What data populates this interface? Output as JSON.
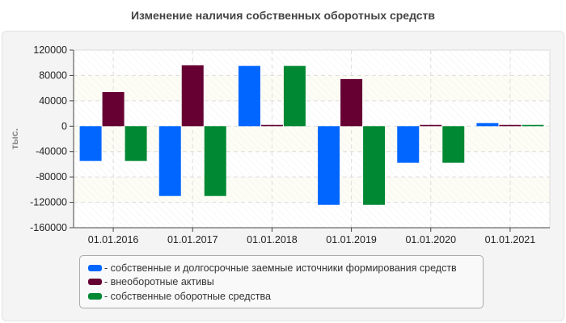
{
  "chart_data": {
    "type": "bar",
    "title": "Изменение наличия собственных оборотных средств",
    "ylabel": "тыс.",
    "xlabel": "",
    "categories": [
      "01.01.2016",
      "01.01.2017",
      "01.01.2018",
      "01.01.2019",
      "01.01.2020",
      "01.01.2021"
    ],
    "ylim": [
      -160000,
      120000
    ],
    "yticks": [
      120000,
      80000,
      40000,
      0,
      -40000,
      -80000,
      -120000,
      -160000
    ],
    "grid": true,
    "legend_position": "bottom",
    "series": [
      {
        "name": "собственные и долгосрочные заемные источники формирования средств",
        "color": "#0066ff",
        "values": [
          -54700,
          -110000,
          95000,
          -124000,
          -57700,
          5000
        ]
      },
      {
        "name": "внеоборотные активы",
        "color": "#660033",
        "values": [
          53800,
          96000,
          2000,
          74300,
          2000,
          2000
        ]
      },
      {
        "name": "собственные оборотные средства",
        "color": "#008833",
        "values": [
          -54700,
          -110000,
          95000,
          -124000,
          -57700,
          2000
        ]
      }
    ]
  }
}
